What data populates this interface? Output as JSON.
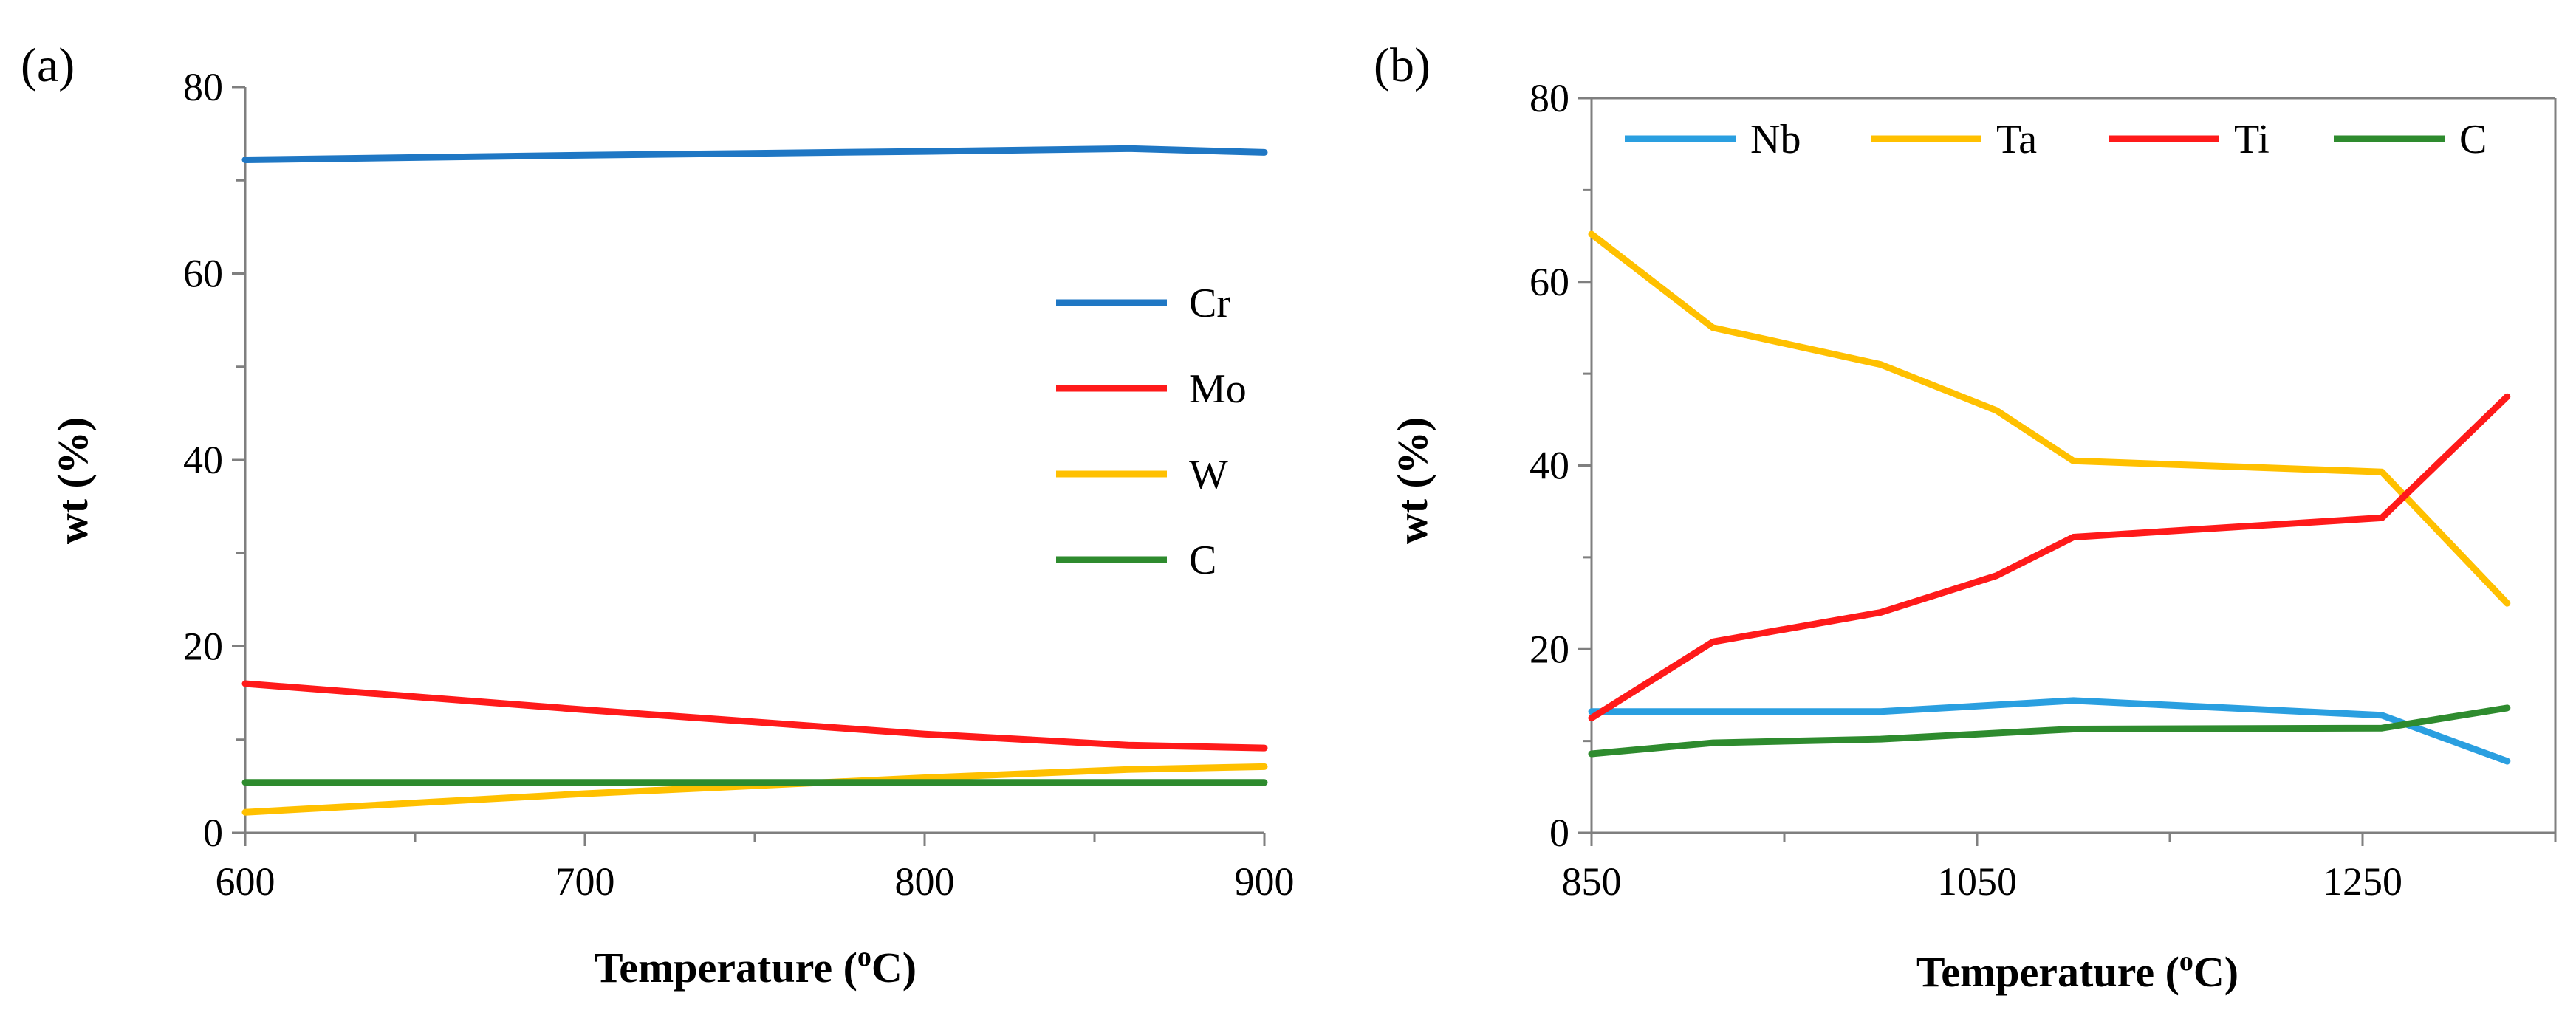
{
  "chart_data": [
    {
      "type": "line",
      "panel_label": "(a)",
      "title": "",
      "xlabel": "Temperature (",
      "xlabel_sup": "o",
      "xlabel_tail": "C)",
      "ylabel": "wt (%)",
      "xlim": [
        600,
        900
      ],
      "ylim": [
        0,
        80
      ],
      "x_ticks": [
        600,
        700,
        800,
        900
      ],
      "y_ticks": [
        0,
        20,
        40,
        60,
        80
      ],
      "grid": false,
      "legend": "right-center",
      "series": [
        {
          "name": "Cr",
          "color": "#1f77c4",
          "x": [
            600,
            700,
            800,
            860,
            900
          ],
          "y": [
            72.2,
            72.7,
            73.1,
            73.4,
            73.0
          ]
        },
        {
          "name": "Mo",
          "color": "#ff1a1a",
          "x": [
            600,
            700,
            800,
            860,
            900
          ],
          "y": [
            16.0,
            13.2,
            10.6,
            9.4,
            9.1
          ]
        },
        {
          "name": "W",
          "color": "#ffc000",
          "x": [
            600,
            700,
            800,
            860,
            900
          ],
          "y": [
            2.2,
            4.2,
            5.9,
            6.8,
            7.1
          ]
        },
        {
          "name": "C",
          "color": "#2e8b2e",
          "x": [
            600,
            700,
            800,
            900
          ],
          "y": [
            5.4,
            5.4,
            5.4,
            5.4
          ]
        }
      ]
    },
    {
      "type": "line",
      "panel_label": "(b)",
      "title": "",
      "xlabel": "Temperature (",
      "xlabel_sup": "o",
      "xlabel_tail": "C)",
      "ylabel": "wt (%)",
      "xlim": [
        850,
        1350
      ],
      "ylim": [
        0,
        80
      ],
      "x_ticks": [
        850,
        1050,
        1250
      ],
      "y_ticks": [
        0,
        20,
        40,
        60,
        80
      ],
      "grid": false,
      "legend": "top",
      "series": [
        {
          "name": "Nb",
          "color": "#2a9fe0",
          "x": [
            850,
            913,
            1000,
            1100,
            1260,
            1325
          ],
          "y": [
            13.2,
            13.2,
            13.2,
            14.4,
            12.8,
            7.8
          ]
        },
        {
          "name": "Ta",
          "color": "#ffc000",
          "x": [
            850,
            913,
            1000,
            1060,
            1100,
            1260,
            1325
          ],
          "y": [
            65.2,
            55.0,
            51.0,
            46.0,
            40.5,
            39.3,
            25.0
          ]
        },
        {
          "name": "Ti",
          "color": "#ff1a1a",
          "x": [
            850,
            913,
            1000,
            1060,
            1100,
            1260,
            1325
          ],
          "y": [
            12.5,
            20.8,
            24.0,
            28.0,
            32.2,
            34.3,
            47.5
          ]
        },
        {
          "name": "C",
          "color": "#2e8b2e",
          "x": [
            850,
            913,
            1000,
            1100,
            1260,
            1325
          ],
          "y": [
            8.6,
            9.8,
            10.2,
            11.3,
            11.4,
            13.6
          ]
        }
      ]
    }
  ]
}
